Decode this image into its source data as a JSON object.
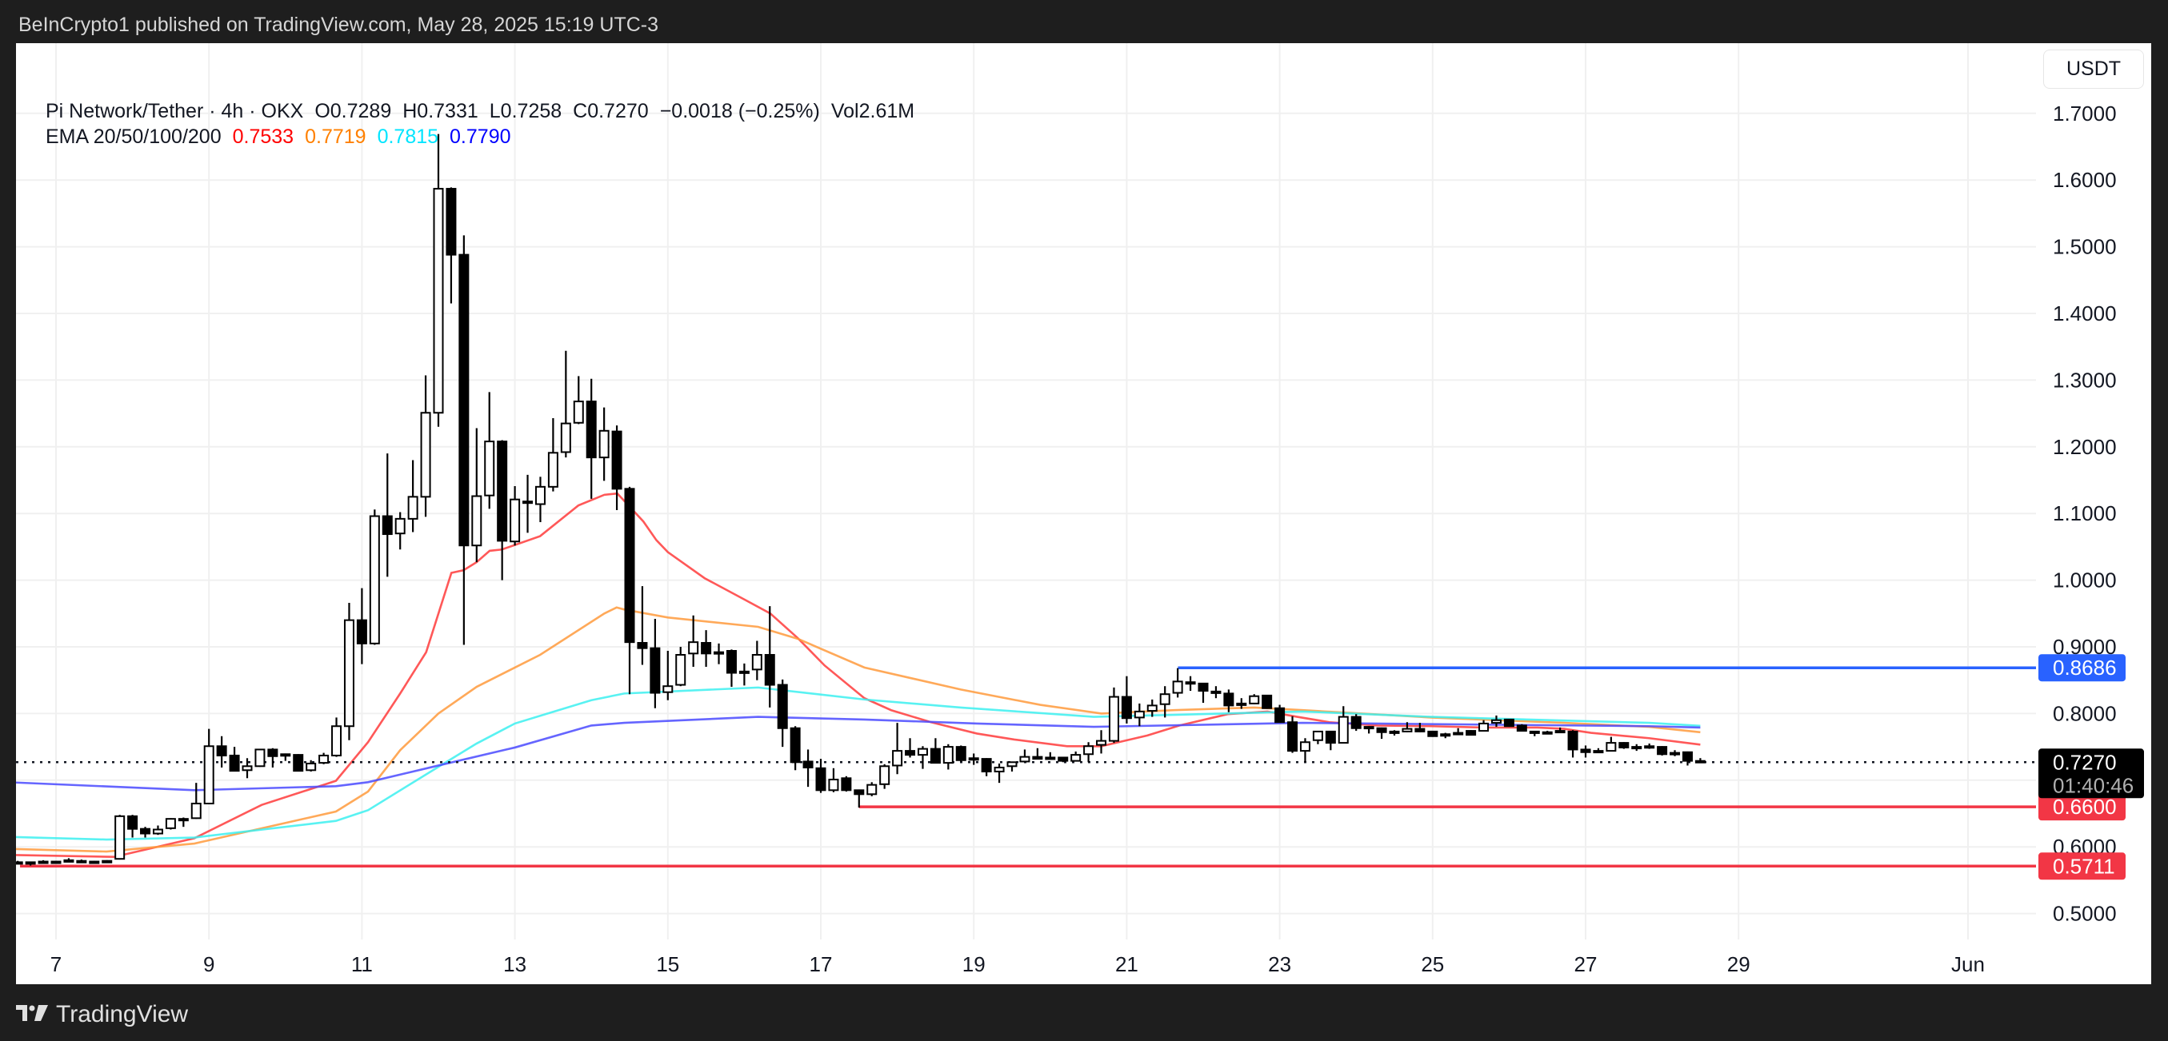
{
  "header": {
    "published": "BeInCrypto1 published on TradingView.com, May 28, 2025 15:19 UTC-3"
  },
  "legend": {
    "symbol": "Pi Network/Tether · 4h · OKX",
    "open": "O0.7289",
    "high": "H0.7331",
    "low": "L0.7258",
    "close": "C0.7270",
    "change": "−0.0018 (−0.25%)",
    "volume": "Vol2.61M",
    "ema_label": "EMA 20/50/100/200",
    "ema_values": [
      {
        "value": "0.7533",
        "color": "#ff0000"
      },
      {
        "value": "0.7719",
        "color": "#ff8000"
      },
      {
        "value": "0.7815",
        "color": "#00e5ff"
      },
      {
        "value": "0.7790",
        "color": "#0000ff"
      }
    ]
  },
  "currency": "USDT",
  "footer": {
    "brand": "TradingView"
  },
  "chart_data": {
    "type": "candlestick",
    "title": "Pi Network/Tether · 4h · OKX",
    "ylim": [
      0.45,
      1.75
    ],
    "xlim_days": [
      6.37,
      34.0
    ],
    "start_day": 6.5,
    "interval_hours": 4,
    "y_ticks": [
      "1.7000",
      "1.6000",
      "1.5000",
      "1.4000",
      "1.3000",
      "1.2000",
      "1.1000",
      "1.0000",
      "0.9000",
      "0.8000",
      "0.6000",
      "0.5000"
    ],
    "x_ticks": [
      {
        "day": 7,
        "label": "7"
      },
      {
        "day": 9,
        "label": "9"
      },
      {
        "day": 11,
        "label": "11"
      },
      {
        "day": 13,
        "label": "13"
      },
      {
        "day": 15,
        "label": "15"
      },
      {
        "day": 17,
        "label": "17"
      },
      {
        "day": 19,
        "label": "19"
      },
      {
        "day": 21,
        "label": "21"
      },
      {
        "day": 23,
        "label": "23"
      },
      {
        "day": 25,
        "label": "25"
      },
      {
        "day": 27,
        "label": "27"
      },
      {
        "day": 29,
        "label": "29"
      },
      {
        "day": 32,
        "label": "Jun"
      }
    ],
    "candles_ohlc": [
      [
        0.577,
        0.579,
        0.575,
        0.577
      ],
      [
        0.577,
        0.578,
        0.572,
        0.576
      ],
      [
        0.578,
        0.58,
        0.576,
        0.578
      ],
      [
        0.578,
        0.579,
        0.577,
        0.578
      ],
      [
        0.58,
        0.583,
        0.578,
        0.58
      ],
      [
        0.579,
        0.581,
        0.577,
        0.579
      ],
      [
        0.578,
        0.579,
        0.576,
        0.578
      ],
      [
        0.579,
        0.58,
        0.577,
        0.577
      ],
      [
        0.582,
        0.648,
        0.581,
        0.646
      ],
      [
        0.646,
        0.648,
        0.614,
        0.627
      ],
      [
        0.627,
        0.63,
        0.614,
        0.62
      ],
      [
        0.62,
        0.632,
        0.618,
        0.626
      ],
      [
        0.628,
        0.643,
        0.626,
        0.642
      ],
      [
        0.642,
        0.644,
        0.63,
        0.642
      ],
      [
        0.643,
        0.696,
        0.642,
        0.665
      ],
      [
        0.665,
        0.777,
        0.664,
        0.751
      ],
      [
        0.751,
        0.766,
        0.719,
        0.737
      ],
      [
        0.737,
        0.75,
        0.713,
        0.714
      ],
      [
        0.715,
        0.733,
        0.703,
        0.721
      ],
      [
        0.721,
        0.747,
        0.72,
        0.746
      ],
      [
        0.746,
        0.748,
        0.719,
        0.736
      ],
      [
        0.739,
        0.74,
        0.729,
        0.739
      ],
      [
        0.738,
        0.739,
        0.713,
        0.714
      ],
      [
        0.715,
        0.73,
        0.713,
        0.725
      ],
      [
        0.726,
        0.741,
        0.724,
        0.737
      ],
      [
        0.737,
        0.794,
        0.735,
        0.781
      ],
      [
        0.781,
        0.966,
        0.76,
        0.94
      ],
      [
        0.94,
        0.988,
        0.874,
        0.905
      ],
      [
        0.905,
        1.106,
        0.903,
        1.096
      ],
      [
        1.096,
        1.19,
        1.005,
        1.069
      ],
      [
        1.07,
        1.102,
        1.046,
        1.092
      ],
      [
        1.092,
        1.18,
        1.072,
        1.125
      ],
      [
        1.125,
        1.307,
        1.095,
        1.251
      ],
      [
        1.251,
        1.669,
        1.23,
        1.587
      ],
      [
        1.587,
        1.589,
        1.415,
        1.488
      ],
      [
        1.488,
        1.517,
        0.903,
        1.052
      ],
      [
        1.052,
        1.228,
        1.027,
        1.126
      ],
      [
        1.127,
        1.282,
        1.107,
        1.208
      ],
      [
        1.208,
        1.21,
        1.0,
        1.059
      ],
      [
        1.058,
        1.141,
        1.052,
        1.121
      ],
      [
        1.118,
        1.158,
        1.071,
        1.118
      ],
      [
        1.114,
        1.155,
        1.087,
        1.14
      ],
      [
        1.14,
        1.243,
        1.133,
        1.191
      ],
      [
        1.192,
        1.344,
        1.184,
        1.235
      ],
      [
        1.236,
        1.306,
        1.234,
        1.268
      ],
      [
        1.268,
        1.302,
        1.122,
        1.184
      ],
      [
        1.184,
        1.259,
        1.149,
        1.224
      ],
      [
        1.223,
        1.232,
        1.105,
        1.137
      ],
      [
        1.137,
        1.14,
        0.829,
        0.907
      ],
      [
        0.906,
        0.991,
        0.873,
        0.898
      ],
      [
        0.898,
        0.942,
        0.808,
        0.831
      ],
      [
        0.832,
        0.894,
        0.82,
        0.841
      ],
      [
        0.843,
        0.9,
        0.841,
        0.888
      ],
      [
        0.89,
        0.947,
        0.87,
        0.907
      ],
      [
        0.906,
        0.925,
        0.87,
        0.89
      ],
      [
        0.892,
        0.905,
        0.874,
        0.892
      ],
      [
        0.894,
        0.896,
        0.84,
        0.861
      ],
      [
        0.863,
        0.875,
        0.842,
        0.863
      ],
      [
        0.866,
        0.909,
        0.85,
        0.888
      ],
      [
        0.888,
        0.961,
        0.809,
        0.843
      ],
      [
        0.843,
        0.851,
        0.75,
        0.778
      ],
      [
        0.778,
        0.781,
        0.715,
        0.727
      ],
      [
        0.728,
        0.746,
        0.69,
        0.719
      ],
      [
        0.718,
        0.732,
        0.681,
        0.685
      ],
      [
        0.685,
        0.718,
        0.682,
        0.701
      ],
      [
        0.703,
        0.706,
        0.683,
        0.685
      ],
      [
        0.685,
        0.686,
        0.659,
        0.679
      ],
      [
        0.679,
        0.697,
        0.676,
        0.693
      ],
      [
        0.694,
        0.724,
        0.687,
        0.721
      ],
      [
        0.722,
        0.786,
        0.709,
        0.744
      ],
      [
        0.744,
        0.763,
        0.734,
        0.738
      ],
      [
        0.738,
        0.751,
        0.717,
        0.747
      ],
      [
        0.747,
        0.763,
        0.725,
        0.726
      ],
      [
        0.726,
        0.754,
        0.716,
        0.75
      ],
      [
        0.75,
        0.752,
        0.728,
        0.73
      ],
      [
        0.733,
        0.74,
        0.723,
        0.733
      ],
      [
        0.732,
        0.733,
        0.706,
        0.713
      ],
      [
        0.713,
        0.725,
        0.696,
        0.719
      ],
      [
        0.721,
        0.727,
        0.713,
        0.727
      ],
      [
        0.728,
        0.746,
        0.727,
        0.735
      ],
      [
        0.735,
        0.748,
        0.731,
        0.732
      ],
      [
        0.734,
        0.742,
        0.731,
        0.734
      ],
      [
        0.734,
        0.735,
        0.727,
        0.729
      ],
      [
        0.729,
        0.743,
        0.728,
        0.738
      ],
      [
        0.739,
        0.757,
        0.727,
        0.751
      ],
      [
        0.753,
        0.775,
        0.74,
        0.759
      ],
      [
        0.759,
        0.839,
        0.756,
        0.825
      ],
      [
        0.825,
        0.856,
        0.785,
        0.793
      ],
      [
        0.794,
        0.815,
        0.781,
        0.803
      ],
      [
        0.804,
        0.821,
        0.795,
        0.812
      ],
      [
        0.814,
        0.841,
        0.794,
        0.829
      ],
      [
        0.831,
        0.868,
        0.824,
        0.848
      ],
      [
        0.847,
        0.856,
        0.834,
        0.847
      ],
      [
        0.845,
        0.846,
        0.816,
        0.834
      ],
      [
        0.833,
        0.841,
        0.823,
        0.833
      ],
      [
        0.83,
        0.836,
        0.802,
        0.812
      ],
      [
        0.815,
        0.823,
        0.807,
        0.815
      ],
      [
        0.815,
        0.829,
        0.814,
        0.826
      ],
      [
        0.827,
        0.828,
        0.807,
        0.808
      ],
      [
        0.808,
        0.813,
        0.787,
        0.787
      ],
      [
        0.787,
        0.796,
        0.741,
        0.744
      ],
      [
        0.744,
        0.763,
        0.727,
        0.757
      ],
      [
        0.76,
        0.774,
        0.754,
        0.773
      ],
      [
        0.773,
        0.774,
        0.745,
        0.756
      ],
      [
        0.756,
        0.811,
        0.755,
        0.795
      ],
      [
        0.795,
        0.799,
        0.774,
        0.778
      ],
      [
        0.78,
        0.781,
        0.77,
        0.78
      ],
      [
        0.778,
        0.779,
        0.762,
        0.772
      ],
      [
        0.773,
        0.775,
        0.767,
        0.773
      ],
      [
        0.773,
        0.787,
        0.772,
        0.777
      ],
      [
        0.777,
        0.786,
        0.772,
        0.773
      ],
      [
        0.773,
        0.774,
        0.765,
        0.766
      ],
      [
        0.769,
        0.771,
        0.763,
        0.769
      ],
      [
        0.771,
        0.778,
        0.77,
        0.771
      ],
      [
        0.774,
        0.775,
        0.767,
        0.768
      ],
      [
        0.774,
        0.79,
        0.773,
        0.785
      ],
      [
        0.786,
        0.797,
        0.78,
        0.79
      ],
      [
        0.791,
        0.792,
        0.78,
        0.781
      ],
      [
        0.782,
        0.784,
        0.773,
        0.774
      ],
      [
        0.773,
        0.774,
        0.766,
        0.773
      ],
      [
        0.772,
        0.774,
        0.77,
        0.772
      ],
      [
        0.774,
        0.779,
        0.771,
        0.774
      ],
      [
        0.773,
        0.775,
        0.734,
        0.746
      ],
      [
        0.746,
        0.752,
        0.734,
        0.742
      ],
      [
        0.744,
        0.748,
        0.742,
        0.744
      ],
      [
        0.744,
        0.765,
        0.743,
        0.756
      ],
      [
        0.756,
        0.757,
        0.747,
        0.749
      ],
      [
        0.749,
        0.754,
        0.744,
        0.75
      ],
      [
        0.751,
        0.755,
        0.747,
        0.751
      ],
      [
        0.75,
        0.751,
        0.737,
        0.739
      ],
      [
        0.741,
        0.745,
        0.736,
        0.741
      ],
      [
        0.742,
        0.743,
        0.722,
        0.729
      ],
      [
        0.7289,
        0.7331,
        0.7258,
        0.727
      ]
    ],
    "ema_series": [
      {
        "name": "EMA 20",
        "color": "#ff3b3b",
        "points": [
          [
            6.37,
            0.588
          ],
          [
            7.76,
            0.585
          ],
          [
            8.81,
            0.613
          ],
          [
            9.69,
            0.663
          ],
          [
            10.66,
            0.699
          ],
          [
            11.08,
            0.757
          ],
          [
            11.5,
            0.83
          ],
          [
            11.84,
            0.892
          ],
          [
            12.17,
            1.011
          ],
          [
            12.33,
            1.015
          ],
          [
            12.5,
            1.027
          ],
          [
            12.67,
            1.044
          ],
          [
            12.83,
            1.046
          ],
          [
            13.33,
            1.066
          ],
          [
            13.83,
            1.112
          ],
          [
            14.17,
            1.128
          ],
          [
            14.34,
            1.13
          ],
          [
            14.68,
            1.088
          ],
          [
            14.85,
            1.06
          ],
          [
            15.0,
            1.042
          ],
          [
            15.48,
            1.003
          ],
          [
            16.0,
            0.971
          ],
          [
            16.34,
            0.95
          ],
          [
            16.7,
            0.913
          ],
          [
            17.05,
            0.872
          ],
          [
            17.57,
            0.823
          ],
          [
            17.92,
            0.805
          ],
          [
            18.44,
            0.787
          ],
          [
            19.04,
            0.77
          ],
          [
            19.53,
            0.761
          ],
          [
            20.22,
            0.751
          ],
          [
            20.67,
            0.751
          ],
          [
            21.27,
            0.767
          ],
          [
            21.69,
            0.782
          ],
          [
            22.32,
            0.799
          ],
          [
            22.84,
            0.803
          ],
          [
            23.23,
            0.795
          ],
          [
            23.65,
            0.787
          ],
          [
            24.28,
            0.782
          ],
          [
            24.98,
            0.781
          ],
          [
            25.67,
            0.779
          ],
          [
            26.37,
            0.779
          ],
          [
            26.72,
            0.777
          ],
          [
            27.07,
            0.771
          ],
          [
            27.83,
            0.763
          ],
          [
            28.5,
            0.7533
          ]
        ]
      },
      {
        "name": "EMA 50",
        "color": "#ff9a3c",
        "points": [
          [
            6.37,
            0.597
          ],
          [
            7.66,
            0.593
          ],
          [
            8.81,
            0.605
          ],
          [
            10.66,
            0.653
          ],
          [
            11.08,
            0.683
          ],
          [
            11.5,
            0.745
          ],
          [
            12.0,
            0.8
          ],
          [
            12.5,
            0.84
          ],
          [
            13.33,
            0.888
          ],
          [
            14.17,
            0.95
          ],
          [
            14.33,
            0.959
          ],
          [
            14.43,
            0.956
          ],
          [
            15.0,
            0.944
          ],
          [
            16.18,
            0.93
          ],
          [
            16.7,
            0.912
          ],
          [
            17.57,
            0.869
          ],
          [
            18.83,
            0.836
          ],
          [
            19.87,
            0.813
          ],
          [
            20.67,
            0.8
          ],
          [
            21.62,
            0.805
          ],
          [
            22.67,
            0.809
          ],
          [
            23.3,
            0.805
          ],
          [
            24.98,
            0.794
          ],
          [
            26.72,
            0.786
          ],
          [
            27.83,
            0.78
          ],
          [
            28.5,
            0.7719
          ]
        ]
      },
      {
        "name": "EMA 100",
        "color": "#3cf0f0",
        "points": [
          [
            6.37,
            0.615
          ],
          [
            7.66,
            0.611
          ],
          [
            8.81,
            0.614
          ],
          [
            10.66,
            0.639
          ],
          [
            11.08,
            0.655
          ],
          [
            12.0,
            0.72
          ],
          [
            12.5,
            0.755
          ],
          [
            13.0,
            0.785
          ],
          [
            14.0,
            0.82
          ],
          [
            14.43,
            0.83
          ],
          [
            16.18,
            0.839
          ],
          [
            17.57,
            0.821
          ],
          [
            18.83,
            0.809
          ],
          [
            20.57,
            0.795
          ],
          [
            21.62,
            0.798
          ],
          [
            23.3,
            0.803
          ],
          [
            24.98,
            0.795
          ],
          [
            27.83,
            0.786
          ],
          [
            28.5,
            0.7815
          ]
        ]
      },
      {
        "name": "EMA 200",
        "color": "#4a4aff",
        "points": [
          [
            6.37,
            0.697
          ],
          [
            8.81,
            0.685
          ],
          [
            10.66,
            0.691
          ],
          [
            11.08,
            0.697
          ],
          [
            12.0,
            0.722
          ],
          [
            13.0,
            0.749
          ],
          [
            14.0,
            0.782
          ],
          [
            14.43,
            0.786
          ],
          [
            16.18,
            0.795
          ],
          [
            17.57,
            0.791
          ],
          [
            19.04,
            0.785
          ],
          [
            20.57,
            0.78
          ],
          [
            23.3,
            0.786
          ],
          [
            27.83,
            0.781
          ],
          [
            28.5,
            0.779
          ]
        ]
      }
    ],
    "levels": [
      {
        "name": "resistance",
        "value": 0.8686,
        "label": "0.8686",
        "color": "#2962ff",
        "from_day": 21.67
      },
      {
        "name": "support-1",
        "value": 0.66,
        "label": "0.6600",
        "color": "#f23645",
        "from_day": 17.5
      },
      {
        "name": "support-2",
        "value": 0.5711,
        "label": "0.5711",
        "color": "#f23645",
        "from_day": 6.53
      }
    ],
    "last_price": {
      "value": 0.727,
      "label": "0.7270",
      "countdown": "01:40:46"
    }
  }
}
